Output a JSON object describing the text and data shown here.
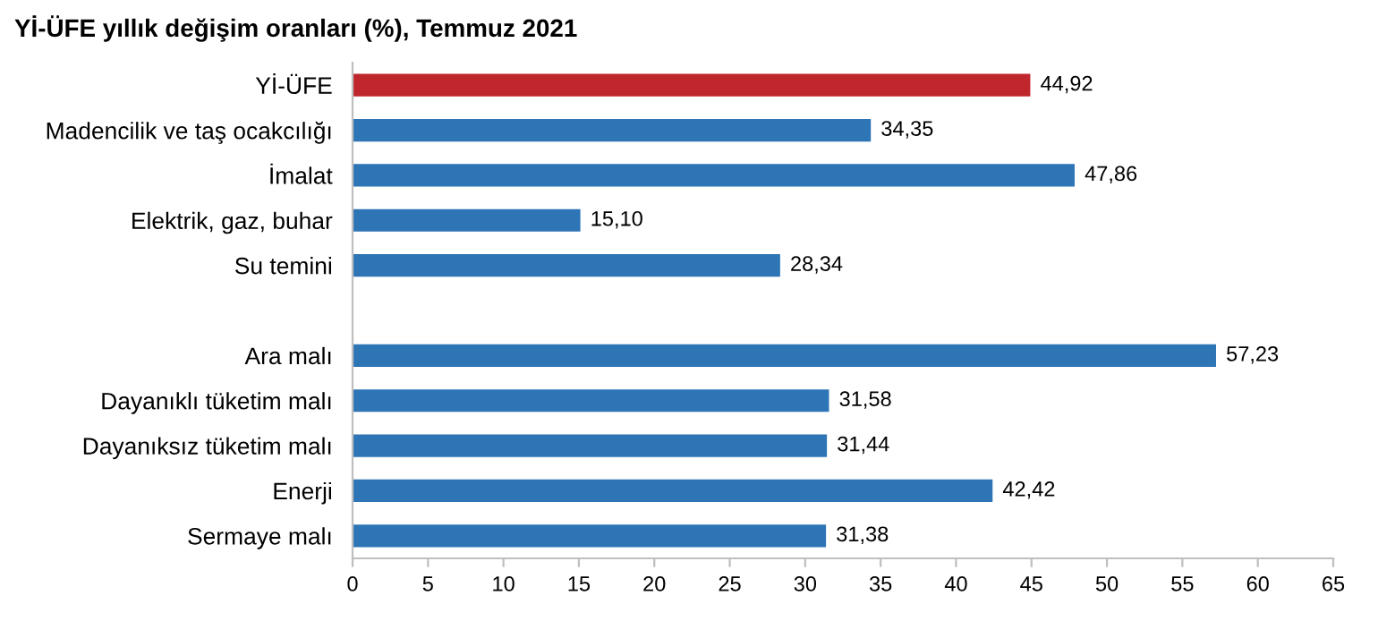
{
  "chart_data": {
    "type": "bar",
    "orientation": "horizontal",
    "title": "Yİ-ÜFE yıllık değişim oranları (%), Temmuz 2021",
    "categories": [
      "Yİ-ÜFE",
      "Madencilik ve taş ocakcılığı",
      "İmalat",
      "Elektrik, gaz, buhar",
      "Su temini",
      null,
      "Ara malı",
      "Dayanıklı tüketim malı",
      "Dayanıksız tüketim malı",
      "Enerji",
      "Sermaye malı"
    ],
    "values": [
      44.92,
      34.35,
      47.86,
      15.1,
      28.34,
      null,
      57.23,
      31.58,
      31.44,
      42.42,
      31.38
    ],
    "value_labels": [
      "44,92",
      "34,35",
      "47,86",
      "15,10",
      "28,34",
      null,
      "57,23",
      "31,58",
      "31,44",
      "42,42",
      "31,38"
    ],
    "colors": [
      "#c0272d",
      "#2e75b6",
      "#2e75b6",
      "#2e75b6",
      "#2e75b6",
      "#2e75b6",
      "#2e75b6",
      "#2e75b6",
      "#2e75b6",
      "#2e75b6",
      "#2e75b6"
    ],
    "xlim": [
      0,
      65
    ],
    "xticks": [
      0,
      5,
      10,
      15,
      20,
      25,
      30,
      35,
      40,
      45,
      50,
      55,
      60,
      65
    ],
    "grid": false,
    "legend": false
  }
}
